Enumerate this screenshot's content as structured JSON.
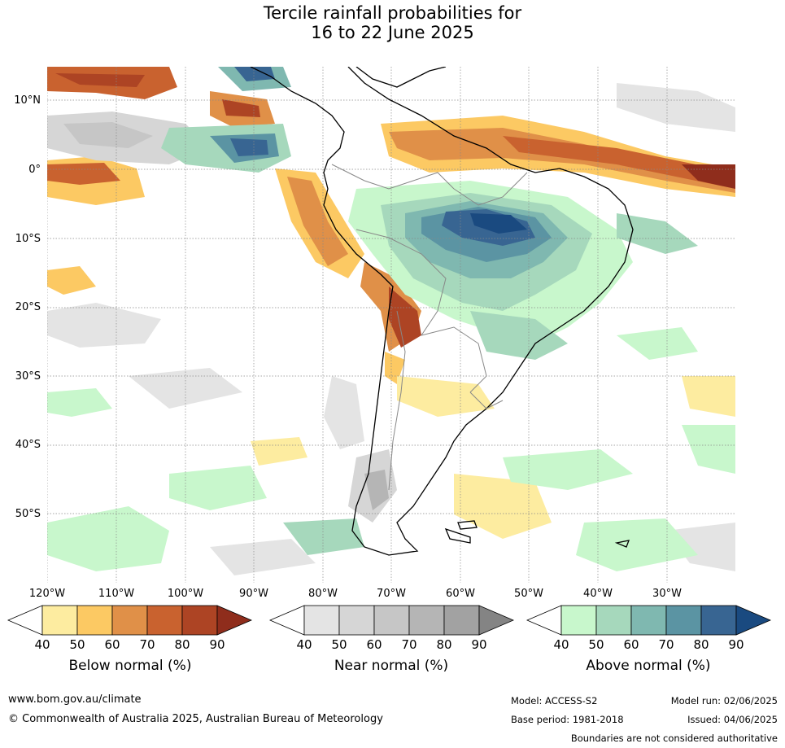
{
  "title": {
    "line1": "Tercile rainfall probabilities for",
    "line2": "16 to 22 June 2025"
  },
  "map": {
    "lat_labels": [
      "10°N",
      "0°",
      "10°S",
      "20°S",
      "30°S",
      "40°S",
      "50°S"
    ],
    "lon_labels": [
      "120°W",
      "110°W",
      "100°W",
      "90°W",
      "80°W",
      "70°W",
      "60°W",
      "50°W",
      "40°W",
      "30°W"
    ]
  },
  "colorbars": [
    {
      "name": "below",
      "title": "Below normal (%)",
      "ticks": [
        "40",
        "50",
        "60",
        "70",
        "80",
        "90"
      ],
      "colors": [
        "#fdeca0",
        "#fcc963",
        "#e09048",
        "#c9622f",
        "#ad4424",
        "#8f2d1c"
      ]
    },
    {
      "name": "near",
      "title": "Near normal (%)",
      "ticks": [
        "40",
        "50",
        "60",
        "70",
        "80",
        "90"
      ],
      "colors": [
        "#e4e4e4",
        "#d6d6d6",
        "#c6c6c6",
        "#b5b5b5",
        "#a2a2a2",
        "#848484"
      ]
    },
    {
      "name": "above",
      "title": "Above normal (%)",
      "ticks": [
        "40",
        "50",
        "60",
        "70",
        "80",
        "90"
      ],
      "colors": [
        "#c8f7cc",
        "#a6d8bc",
        "#7fb8b0",
        "#5b94a3",
        "#386592",
        "#1a4a80"
      ]
    }
  ],
  "footer": {
    "url": "www.bom.gov.au/climate",
    "copyright": "© Commonwealth of Australia 2025, Australian Bureau of Meteorology",
    "model": "Model: ACCESS-S2",
    "model_run": "Model run: 02/06/2025",
    "base_period": "Base period: 1981-2018",
    "issued": "Issued: 04/06/2025",
    "disclaimer": "Boundaries are not considered authoritative"
  }
}
